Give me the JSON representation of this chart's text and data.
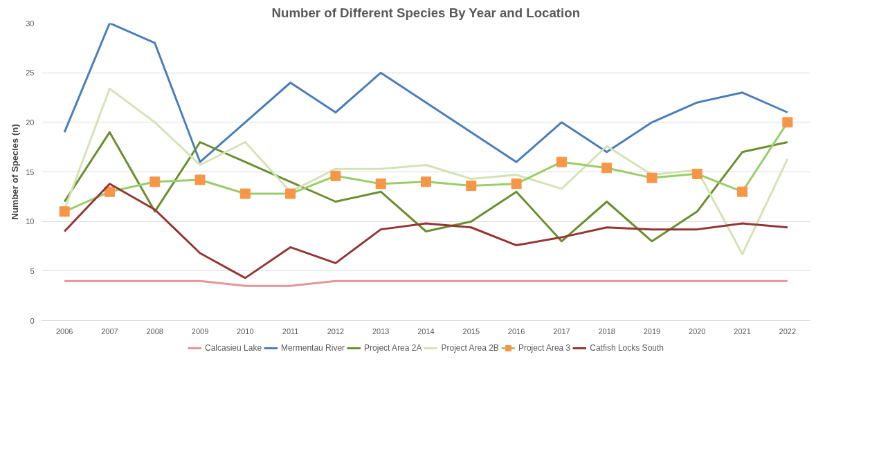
{
  "chart_data": {
    "type": "line",
    "title": "Number of Different Species By Year and Location",
    "ylabel": "Number of Species (n)",
    "categories": [
      "2006",
      "2007",
      "2008",
      "2009",
      "2010",
      "2011",
      "2012",
      "2013",
      "2014",
      "2015",
      "2016",
      "2017",
      "2018",
      "2019",
      "2020",
      "2021",
      "2022"
    ],
    "ylim": [
      0,
      30
    ],
    "yticks": [
      0,
      5,
      10,
      15,
      20,
      25,
      30
    ],
    "grid": "y",
    "legend": "bottom",
    "marker": "none",
    "line_style": "solid",
    "series": [
      {
        "name": "Calcasieu Lake",
        "color": "#e6939a",
        "values": [
          4,
          4,
          4,
          4,
          3.5,
          3.5,
          4,
          4,
          4,
          4,
          4,
          4,
          4,
          4,
          4,
          4,
          4
        ]
      },
      {
        "name": "Mermentau River",
        "color": "#4a7ebb",
        "values": [
          19,
          30,
          28,
          16,
          20,
          24,
          21,
          25,
          22,
          19,
          16,
          20,
          17,
          20,
          22,
          23,
          21
        ]
      },
      {
        "name": "Project Area 2A",
        "color": "#6b8e2f",
        "values": [
          12,
          19,
          11,
          18,
          16,
          14,
          12,
          13,
          9,
          10,
          13,
          8,
          12,
          8,
          11,
          17,
          18
        ]
      },
      {
        "name": "Project Area 2B",
        "color": "#d4e3b5",
        "values": [
          11.2,
          23.4,
          20,
          15.7,
          18,
          13,
          15.3,
          15.3,
          15.7,
          14.3,
          14.7,
          13.3,
          17.6,
          14.7,
          15.2,
          6.7,
          16.3
        ]
      },
      {
        "name": "Project Area 3",
        "color": "#9acd6a",
        "marker": "square",
        "colors": [
          "#f79646",
          "#f79646",
          "#f79646",
          "#f79646",
          "#f79646",
          "#f79646",
          "#f79646",
          "#f79646",
          "#f79646",
          "#f79646",
          "#f79646",
          "#f79646",
          "#f79646",
          "#f79646",
          "#f79646",
          "#f79646",
          "#f79646"
        ],
        "values": [
          11,
          13,
          14,
          14.2,
          12.8,
          12.8,
          14.6,
          13.8,
          14,
          13.6,
          13.8,
          16,
          15.4,
          14.4,
          14.8,
          13,
          20
        ]
      },
      {
        "name": "Catfish Locks South",
        "color": "#943634",
        "values": [
          9,
          13.8,
          11.2,
          6.8,
          4.3,
          7.4,
          5.8,
          9.2,
          9.8,
          9.4,
          7.6,
          8.4,
          9.4,
          9.2,
          9.2,
          9.8,
          9.4
        ]
      }
    ]
  }
}
